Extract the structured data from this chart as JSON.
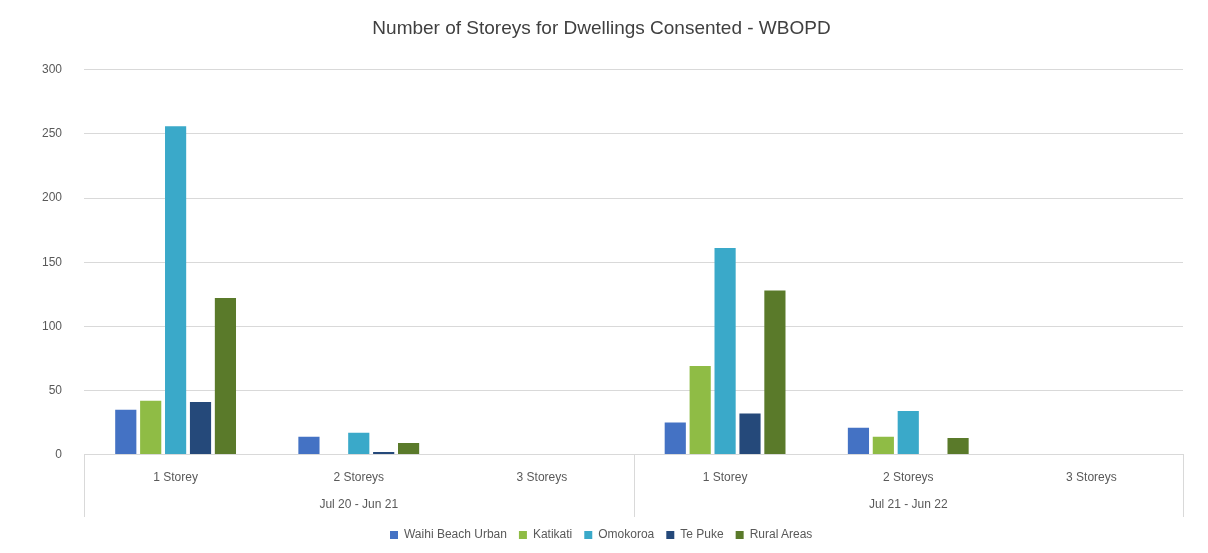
{
  "chart_data": {
    "type": "bar",
    "title": "Number of Storeys for Dwellings Consented - WBOPD",
    "categories": [
      "1 Storey",
      "2 Storeys",
      "3 Storeys",
      "1 Storey",
      "2 Storeys",
      "3 Storeys"
    ],
    "series": [
      {
        "name": "Waihi Beach Urban",
        "color": "#4472c4",
        "values": [
          35,
          14,
          0,
          25,
          21,
          0
        ]
      },
      {
        "name": "Katikati",
        "color": "#8fbc45",
        "values": [
          42,
          0,
          0,
          69,
          14,
          0
        ]
      },
      {
        "name": "Omokoroa",
        "color": "#3aa9c9",
        "values": [
          256,
          17,
          0,
          161,
          34,
          0
        ]
      },
      {
        "name": "Te Puke",
        "color": "#25497a",
        "values": [
          41,
          2,
          0,
          32,
          0,
          0
        ]
      },
      {
        "name": "Rural Areas",
        "color": "#5a7a2a",
        "values": [
          122,
          9,
          0,
          128,
          13,
          0
        ]
      }
    ],
    "ylim": [
      0,
      300
    ],
    "yticks": [
      0,
      50,
      100,
      150,
      200,
      250,
      300
    ],
    "grid": "y",
    "legend": "bottom",
    "annotations": [
      "Jul 20 - Jun 21",
      "Jul 21 - Jun 22"
    ]
  }
}
